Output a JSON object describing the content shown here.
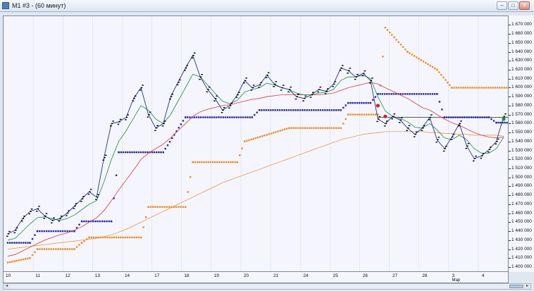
{
  "window": {
    "title": "M1 #3 - (60 минут)",
    "minimize": "–",
    "maximize": "□",
    "close": "×"
  },
  "yaxis": {
    "labels": [
      "1 670 000",
      "1 660 000",
      "1 650 000",
      "1 640 000",
      "1 630 000",
      "1 620 000",
      "1 610 000",
      "1 600 000",
      "1 590 000",
      "1 580 000",
      "1 570 000",
      "1 560 000",
      "1 550 000",
      "1 540 000",
      "1 530 000",
      "1 520 000",
      "1 510 000",
      "1 500 000",
      "1 490 000",
      "1 480 000",
      "1 470 000",
      "1 460 000",
      "1 450 000",
      "1 440 000",
      "1 430 000",
      "1 420 000",
      "1 410 000",
      "1 400 000"
    ]
  },
  "xaxis": {
    "labels": [
      "10",
      "11",
      "12",
      "13",
      "14",
      "17",
      "18",
      "19",
      "20",
      "21",
      "24",
      "25",
      "26",
      "27",
      "28",
      "3",
      "4"
    ],
    "month": "Мар"
  },
  "colors": {
    "price": "#000000",
    "fast_ma": "#1f2f9a",
    "mid_ma": "#1f8a3a",
    "slow_ma": "#d63a3a",
    "long_ma": "#f08a24",
    "stop_blue": "#2626a6",
    "stop_orange": "#f08a24",
    "signal": "#d81e1e",
    "hline": "#3a4a3a"
  },
  "chart_data": {
    "type": "line",
    "ylim": [
      1400000,
      1675000
    ],
    "series": [
      {
        "name": "",
        "values": [
          1437000,
          1441000,
          1454000,
          1462000,
          1465000,
          1457000,
          1452000,
          1454000,
          1460000,
          1468000,
          1476000,
          1484000,
          1478000,
          1522000,
          1560000,
          1562000,
          1567000,
          1588000,
          1600000,
          1570000,
          1555000,
          1560000,
          1590000,
          1606000,
          1622000,
          1636000,
          1612000,
          1598000,
          1588000,
          1575000,
          1580000,
          1592000,
          1608000,
          1600000,
          1603000,
          1614000,
          1604000,
          1600000,
          1598000,
          1590000,
          1588000,
          1592000,
          1598000,
          1596000,
          1604000,
          1622000,
          1619000,
          1612000,
          1616000,
          1608000,
          1565000,
          1560000,
          1568000,
          1564000,
          1555000,
          1548000,
          1555000,
          1567000,
          1542000,
          1532000,
          1545000,
          1560000,
          1535000,
          1521000,
          1524000,
          1531000,
          1540000,
          1568000
        ]
      },
      {
        "name": "",
        "values": [
          1430000,
          1432000,
          1440000,
          1448000,
          1455000,
          1456000,
          1454000,
          1452000,
          1454000,
          1458000,
          1464000,
          1470000,
          1474000,
          1495000,
          1520000,
          1540000,
          1552000,
          1566000,
          1580000,
          1575000,
          1565000,
          1560000,
          1570000,
          1585000,
          1600000,
          1615000,
          1612000,
          1603000,
          1594000,
          1585000,
          1582000,
          1586000,
          1595000,
          1598000,
          1600000,
          1605000,
          1603000,
          1600000,
          1598000,
          1594000,
          1592000,
          1592000,
          1594000,
          1595000,
          1598000,
          1608000,
          1612000,
          1612000,
          1614000,
          1610000,
          1590000,
          1574000,
          1568000,
          1566000,
          1562000,
          1556000,
          1555000,
          1560000,
          1553000,
          1544000,
          1542000,
          1547000,
          1542000,
          1532000,
          1527000,
          1527000,
          1532000,
          1545000
        ]
      },
      {
        "name": "",
        "values": [
          1412000,
          1414000,
          1418000,
          1422000,
          1426000,
          1430000,
          1433000,
          1436000,
          1438000,
          1441000,
          1445000,
          1450000,
          1455000,
          1463000,
          1474000,
          1486000,
          1497000,
          1508000,
          1520000,
          1527000,
          1532000,
          1537000,
          1544000,
          1552000,
          1560000,
          1568000,
          1573000,
          1576000,
          1578000,
          1580000,
          1581000,
          1583000,
          1585000,
          1587000,
          1588000,
          1590000,
          1591000,
          1592000,
          1592000,
          1592000,
          1592000,
          1592000,
          1592000,
          1593000,
          1594000,
          1597000,
          1600000,
          1602000,
          1604000,
          1606000,
          1604000,
          1600000,
          1596000,
          1592000,
          1588000,
          1583000,
          1578000,
          1575000,
          1570000,
          1565000,
          1561000,
          1558000,
          1554000,
          1550000,
          1547000,
          1545000,
          1544000,
          1545000
        ]
      },
      {
        "name": "",
        "values": [
          1420000,
          1421000,
          1422000,
          1423000,
          1424000,
          1425000,
          1426000,
          1427000,
          1428000,
          1429000,
          1430000,
          1431000,
          1432000,
          1434000,
          1436000,
          1439000,
          1442000,
          1446000,
          1450000,
          1454000,
          1458000,
          1462000,
          1466000,
          1470000,
          1474000,
          1478000,
          1482000,
          1486000,
          1490000,
          1494000,
          1497000,
          1500000,
          1503000,
          1506000,
          1509000,
          1512000,
          1515000,
          1518000,
          1521000,
          1524000,
          1527000,
          1530000,
          1533000,
          1536000,
          1539000,
          1542000,
          1544000,
          1546000,
          1548000,
          1549000,
          1550000,
          1551000,
          1551000,
          1551000,
          1551000,
          1551000,
          1551000,
          1550000,
          1550000,
          1549000,
          1549000,
          1548000,
          1548000,
          1547000,
          1547000,
          1547000,
          1547000,
          1546000
        ]
      }
    ],
    "stops_blue": [
      [
        0,
        1427000
      ],
      [
        3,
        1427000
      ],
      [
        4,
        1440000
      ],
      [
        9,
        1440000
      ],
      [
        10,
        1451000
      ],
      [
        14,
        1451000
      ],
      [
        15,
        1528000
      ],
      [
        21,
        1528000
      ],
      [
        24,
        1567000
      ],
      [
        33,
        1567000
      ],
      [
        34,
        1575000
      ],
      [
        45,
        1575000
      ],
      [
        46,
        1583000
      ],
      [
        49,
        1583000
      ],
      [
        50,
        1593000
      ],
      [
        58,
        1593000
      ],
      [
        59,
        1567000
      ],
      [
        65,
        1567000
      ],
      [
        66,
        1561000
      ],
      [
        68,
        1561000
      ]
    ],
    "stops_orange": [
      [
        0,
        1405000
      ],
      [
        3,
        1410000
      ],
      [
        4,
        1420000
      ],
      [
        9,
        1420000
      ],
      [
        10,
        1427000
      ],
      [
        11,
        1433000
      ],
      [
        18,
        1433000
      ],
      [
        19,
        1467000
      ],
      [
        24,
        1467000
      ],
      [
        25,
        1517000
      ],
      [
        31,
        1517000
      ],
      [
        32,
        1540000
      ],
      [
        38,
        1555000
      ],
      [
        45,
        1555000
      ],
      [
        46,
        1570000
      ],
      [
        50,
        1570000
      ],
      [
        51,
        1667000
      ],
      [
        54,
        1640000
      ],
      [
        58,
        1620000
      ],
      [
        60,
        1600000
      ],
      [
        68,
        1600000
      ]
    ],
    "hline": 1567000
  }
}
